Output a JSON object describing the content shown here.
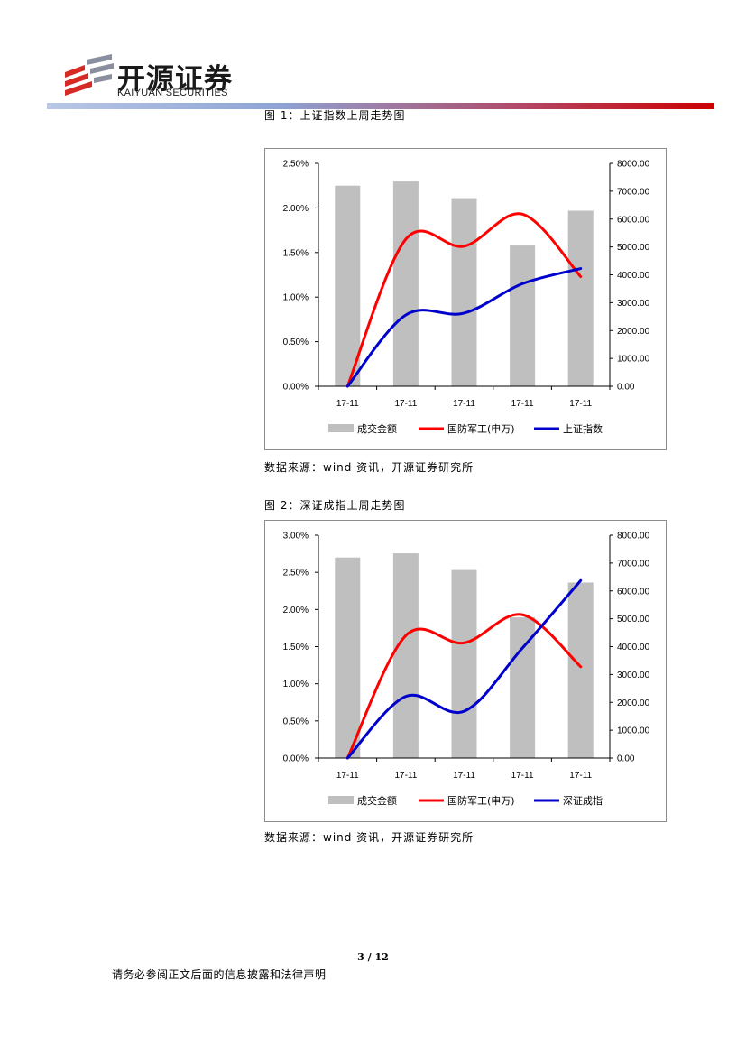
{
  "header": {
    "logo_cn": "开源证券",
    "logo_en": "KAIYUAN SECURITIES",
    "colors": {
      "logo_red": "#d62b25",
      "rule_left": "#b8c7e6",
      "rule_right": "#cc0000"
    }
  },
  "figure1": {
    "caption": "图 1：上证指数上周走势图",
    "source": "数据来源：wind 资讯，开源证券研究所"
  },
  "figure2": {
    "caption": "图 2：深证成指上周走势图",
    "source": "数据来源：wind 资讯，开源证券研究所"
  },
  "footer": {
    "page": "3 / 12",
    "note": "请务必参阅正文后面的信息披露和法律声明"
  },
  "chart_data": [
    {
      "type": "bar",
      "categories": [
        "17-11",
        "17-11",
        "17-11",
        "17-11",
        "17-11"
      ],
      "y_left": {
        "min": 0,
        "max": 2.5,
        "ticks": [
          "0.00%",
          "0.50%",
          "1.00%",
          "1.50%",
          "2.00%",
          "2.50%"
        ]
      },
      "y_right": {
        "min": 0,
        "max": 8000,
        "ticks": [
          "0.00",
          "1000.00",
          "2000.00",
          "3000.00",
          "4000.00",
          "5000.00",
          "6000.00",
          "7000.00",
          "8000.00"
        ]
      },
      "series": [
        {
          "name": "成交金额",
          "kind": "bar",
          "axis": "right",
          "color": "#bfbfbf",
          "values": [
            7200,
            7350,
            6750,
            5050,
            6300
          ]
        },
        {
          "name": "国防军工(申万)",
          "kind": "line",
          "axis": "left",
          "color": "#ff0000",
          "values": [
            0.0,
            1.65,
            1.57,
            1.93,
            1.23
          ]
        },
        {
          "name": "上证指数",
          "kind": "line",
          "axis": "left",
          "color": "#0000cc",
          "values": [
            0.0,
            0.8,
            0.82,
            1.15,
            1.32
          ]
        }
      ],
      "legend": "bottom",
      "grid": false
    },
    {
      "type": "bar",
      "categories": [
        "17-11",
        "17-11",
        "17-11",
        "17-11",
        "17-11"
      ],
      "y_left": {
        "min": 0,
        "max": 3.0,
        "ticks": [
          "0.00%",
          "0.50%",
          "1.00%",
          "1.50%",
          "2.00%",
          "2.50%",
          "3.00%"
        ]
      },
      "y_right": {
        "min": 0,
        "max": 8000,
        "ticks": [
          "0.00",
          "1000.00",
          "2000.00",
          "3000.00",
          "4000.00",
          "5000.00",
          "6000.00",
          "7000.00",
          "8000.00"
        ]
      },
      "series": [
        {
          "name": "成交金额",
          "kind": "bar",
          "axis": "right",
          "color": "#bfbfbf",
          "values": [
            7200,
            7350,
            6750,
            5050,
            6300
          ]
        },
        {
          "name": "国防军工(申万)",
          "kind": "line",
          "axis": "left",
          "color": "#ff0000",
          "values": [
            0.0,
            1.65,
            1.55,
            1.93,
            1.23
          ]
        },
        {
          "name": "深证成指",
          "kind": "line",
          "axis": "left",
          "color": "#0000cc",
          "values": [
            0.0,
            0.83,
            0.63,
            1.48,
            2.39
          ]
        }
      ],
      "legend": "bottom",
      "grid": false
    }
  ]
}
